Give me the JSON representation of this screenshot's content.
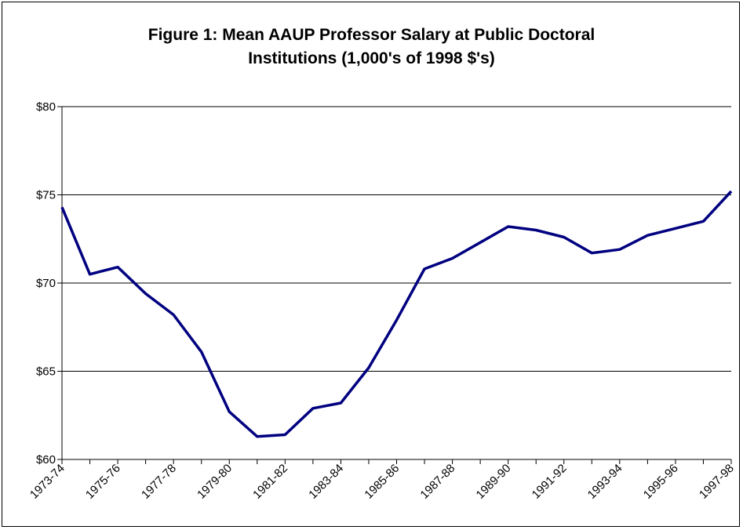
{
  "chart_data": {
    "type": "line",
    "title_lines": [
      "Figure 1:  Mean AAUP Professor Salary at Public Doctoral",
      "Institutions (1,000's of 1998 $'s)"
    ],
    "xlabel": "",
    "ylabel": "",
    "ylim": [
      60,
      80
    ],
    "yticks": [
      60,
      65,
      70,
      75,
      80
    ],
    "ytick_labels": [
      "$60",
      "$65",
      "$70",
      "$75",
      "$80"
    ],
    "grid": "horizontal",
    "x": [
      "1973-74",
      "1974-75",
      "1975-76",
      "1976-77",
      "1977-78",
      "1978-79",
      "1979-80",
      "1980-81",
      "1981-82",
      "1982-83",
      "1983-84",
      "1984-85",
      "1985-86",
      "1986-87",
      "1987-88",
      "1988-89",
      "1989-90",
      "1990-91",
      "1991-92",
      "1992-93",
      "1993-94",
      "1994-95",
      "1995-96",
      "1996-97",
      "1997-98"
    ],
    "xtick_labels": [
      "1973-74",
      "1975-76",
      "1977-78",
      "1979-80",
      "1981-82",
      "1983-84",
      "1985-86",
      "1987-88",
      "1989-90",
      "1991-92",
      "1993-94",
      "1995-96",
      "1997-98"
    ],
    "series": [
      {
        "values": [
          74.3,
          70.5,
          70.9,
          69.4,
          68.2,
          66.1,
          62.7,
          61.3,
          61.4,
          62.9,
          63.2,
          65.2,
          67.9,
          70.8,
          71.4,
          72.3,
          73.2,
          73.0,
          72.6,
          71.7,
          71.9,
          72.7,
          73.1,
          73.5,
          75.2
        ],
        "color": "#000080"
      }
    ]
  }
}
